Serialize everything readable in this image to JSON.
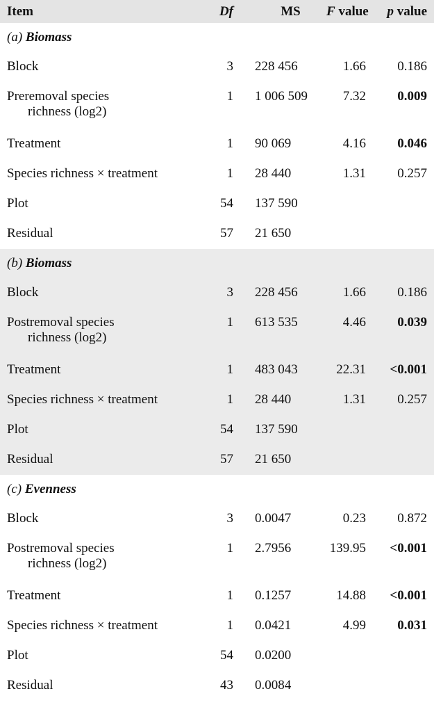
{
  "table": {
    "header": [
      "Item",
      "Df",
      "MS",
      "F value",
      "p value"
    ],
    "sections": [
      {
        "label": "(a)",
        "title": "Biomass",
        "rows": [
          {
            "item": "Block",
            "df": "3",
            "ms": "228 456",
            "f": "1.66",
            "p": "0.186",
            "p_bold": false
          },
          {
            "item": [
              "Preremoval species",
              "richness (log2)"
            ],
            "df": "1",
            "ms": "1 006 509",
            "f": "7.32",
            "p": "0.009",
            "p_bold": true
          },
          {
            "item": "Treatment",
            "df": "1",
            "ms": "90 069",
            "f": "4.16",
            "p": "0.046",
            "p_bold": true
          },
          {
            "item": "Species richness × treatment",
            "df": "1",
            "ms": "28 440",
            "f": "1.31",
            "p": "0.257",
            "p_bold": false
          },
          {
            "item": "Plot",
            "df": "54",
            "ms": "137 590",
            "f": null,
            "p": null,
            "p_bold": false
          },
          {
            "item": "Residual",
            "df": "57",
            "ms": "21 650",
            "f": null,
            "p": null,
            "p_bold": false
          }
        ]
      },
      {
        "label": "(b)",
        "title": "Biomass",
        "rows": [
          {
            "item": "Block",
            "df": "3",
            "ms": "228 456",
            "f": "1.66",
            "p": "0.186",
            "p_bold": false
          },
          {
            "item": [
              "Postremoval species",
              "richness (log2)"
            ],
            "df": "1",
            "ms": "613 535",
            "f": "4.46",
            "p": "0.039",
            "p_bold": true
          },
          {
            "item": "Treatment",
            "df": "1",
            "ms": "483 043",
            "f": "22.31",
            "p": "<0.001",
            "p_bold": true
          },
          {
            "item": "Species richness × treatment",
            "df": "1",
            "ms": "28 440",
            "f": "1.31",
            "p": "0.257",
            "p_bold": false
          },
          {
            "item": "Plot",
            "df": "54",
            "ms": "137 590",
            "f": null,
            "p": null,
            "p_bold": false
          },
          {
            "item": "Residual",
            "df": "57",
            "ms": "21 650",
            "f": null,
            "p": null,
            "p_bold": false
          }
        ]
      },
      {
        "label": "(c)",
        "title": "Evenness",
        "rows": [
          {
            "item": "Block",
            "df": "3",
            "ms": "0.0047",
            "f": "0.23",
            "p": "0.872",
            "p_bold": false
          },
          {
            "item": [
              "Postremoval species",
              "richness (log2)"
            ],
            "df": "1",
            "ms": "2.7956",
            "f": "139.95",
            "p": "<0.001",
            "p_bold": true
          },
          {
            "item": "Treatment",
            "df": "1",
            "ms": "0.1257",
            "f": "14.88",
            "p": "<0.001",
            "p_bold": true
          },
          {
            "item": "Species richness × treatment",
            "df": "1",
            "ms": "0.0421",
            "f": "4.99",
            "p": "0.031",
            "p_bold": true
          },
          {
            "item": "Plot",
            "df": "54",
            "ms": "0.0200",
            "f": null,
            "p": null,
            "p_bold": false
          },
          {
            "item": "Residual",
            "df": "43",
            "ms": "0.0084",
            "f": null,
            "p": null,
            "p_bold": false
          }
        ]
      }
    ]
  }
}
